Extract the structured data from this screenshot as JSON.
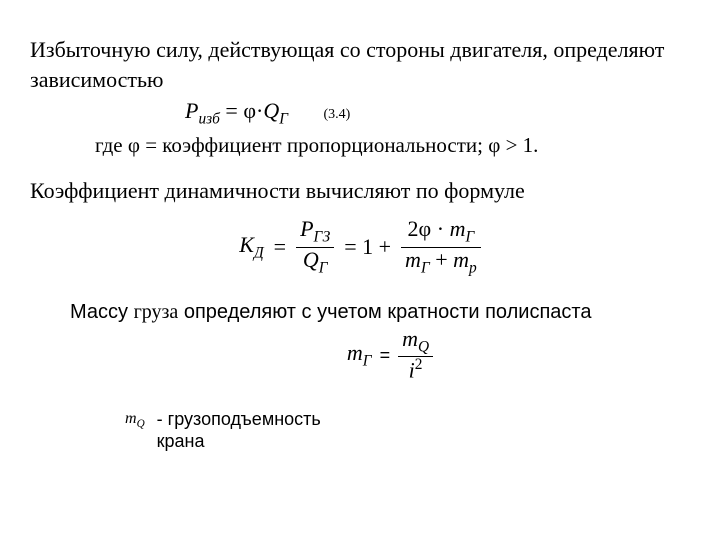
{
  "colors": {
    "text": "#000000",
    "background": "#ffffff"
  },
  "typography": {
    "serif_family": "Times New Roman",
    "sans_family": "Arial",
    "body_fontsize_pt": 16,
    "eq_label_fontsize_pt": 10,
    "legend_fontsize_pt": 13
  },
  "para1": {
    "text": "Избыточную силу, действующая со стороны двигателя, определяют  зависимостью"
  },
  "eq": {
    "lhs_var": "Р",
    "lhs_sub": "изб",
    "op": " = ",
    "rhs_phi": "φ·",
    "rhs_var": "Q",
    "rhs_sub": "Г",
    "label": "(3.4)"
  },
  "where": {
    "prefix": "где   φ = коэффициент пропорциональности;   φ > 1."
  },
  "para2": {
    "text": "Коэффициент  динамичности вычисляют по формуле"
  },
  "kd_formula": {
    "lhs_var": "К",
    "lhs_sub": "Д",
    "eq": "=",
    "frac1_num_var": "P",
    "frac1_num_sub": "ГЗ",
    "frac1_den_var": "Q",
    "frac1_den_sub": "Г",
    "mid": "= 1 +",
    "frac2_num_pre": "2φ · ",
    "frac2_num_var": "m",
    "frac2_num_sub": "Г",
    "frac2_den_var1": "m",
    "frac2_den_sub1": "Г",
    "frac2_den_plus": "  + ",
    "frac2_den_var2": "m",
    "frac2_den_sub2": "p"
  },
  "para3": {
    "pre": "Массу ",
    "italic_word": "груза",
    "post": "  определяют с учетом кратности полиспаста"
  },
  "mg_formula": {
    "lhs_var": "m",
    "lhs_sub": "Г",
    "eq": "=",
    "num_var": "m",
    "num_sub": "Q",
    "den_var": "i",
    "den_sup": "2"
  },
  "legend": {
    "sym_var": "m",
    "sym_sub": "Q",
    "text": "- грузоподъемность крана"
  }
}
